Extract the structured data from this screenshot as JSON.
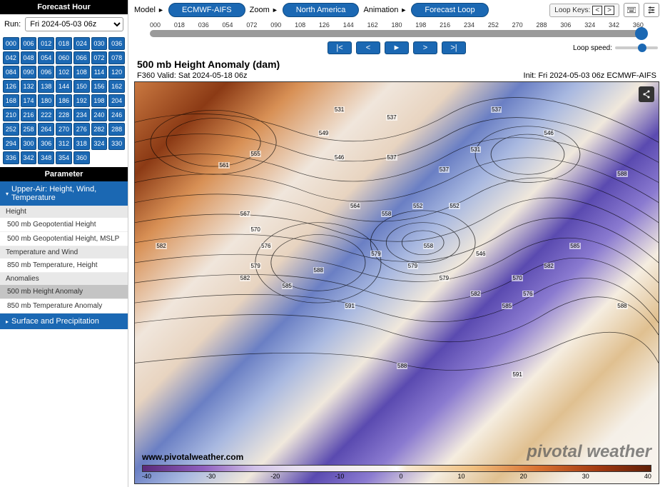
{
  "sidebar": {
    "forecast_hour_header": "Forecast Hour",
    "run_label": "Run:",
    "run_value": "Fri 2024-05-03 06z",
    "hours": [
      "000",
      "006",
      "012",
      "018",
      "024",
      "030",
      "036",
      "042",
      "048",
      "054",
      "060",
      "066",
      "072",
      "078",
      "084",
      "090",
      "096",
      "102",
      "108",
      "114",
      "120",
      "126",
      "132",
      "138",
      "144",
      "150",
      "156",
      "162",
      "168",
      "174",
      "180",
      "186",
      "192",
      "198",
      "204",
      "210",
      "216",
      "222",
      "228",
      "234",
      "240",
      "246",
      "252",
      "258",
      "264",
      "270",
      "276",
      "282",
      "288",
      "294",
      "300",
      "306",
      "312",
      "318",
      "324",
      "330",
      "336",
      "342",
      "348",
      "354",
      "360"
    ],
    "parameter_header": "Parameter",
    "accordion1": "Upper-Air: Height, Wind, Temperature",
    "group_height": "Height",
    "item_500gh": "500 mb Geopotential Height",
    "item_500gh_mslp": "500 mb Geopotential Height, MSLP",
    "group_temp": "Temperature and Wind",
    "item_850th": "850 mb Temperature, Height",
    "group_anom": "Anomalies",
    "item_500anom": "500 mb Height Anomaly",
    "item_850anom": "850 mb Temperature Anomaly",
    "accordion2": "Surface and Precipitation"
  },
  "top": {
    "model_label": "Model",
    "model_value": "ECMWF-AIFS",
    "zoom_label": "Zoom",
    "zoom_value": "North America",
    "anim_label": "Animation",
    "anim_value": "Forecast Loop",
    "loop_keys_label": "Loop Keys:",
    "loop_speed_label": "Loop speed:"
  },
  "ticks": [
    "000",
    "018",
    "036",
    "054",
    "072",
    "090",
    "108",
    "126",
    "144",
    "162",
    "180",
    "198",
    "216",
    "234",
    "252",
    "270",
    "288",
    "306",
    "324",
    "342",
    "360"
  ],
  "anim_buttons": {
    "first": "|<",
    "prev": "<",
    "play": "►",
    "next": ">",
    "last": ">|"
  },
  "map": {
    "title": "500 mb Height Anomaly (dam)",
    "subtitle_left": "F360 Valid: Sat 2024-05-18 06z",
    "subtitle_right": "Init: Fri 2024-05-03 06z ECMWF-AIFS",
    "watermark": "pivotal weather",
    "watermark_www": "www.pivotalweather.com",
    "colorbar_ticks": [
      "-40",
      "-30",
      "-20",
      "-10",
      "0",
      "10",
      "20",
      "30",
      "40"
    ],
    "contour_samples": [
      {
        "x": 38,
        "y": 6,
        "v": "531"
      },
      {
        "x": 48,
        "y": 8,
        "v": "537"
      },
      {
        "x": 68,
        "y": 6,
        "v": "537"
      },
      {
        "x": 35,
        "y": 12,
        "v": "549"
      },
      {
        "x": 22,
        "y": 17,
        "v": "555"
      },
      {
        "x": 16,
        "y": 20,
        "v": "561"
      },
      {
        "x": 38,
        "y": 18,
        "v": "546"
      },
      {
        "x": 48,
        "y": 18,
        "v": "537"
      },
      {
        "x": 58,
        "y": 21,
        "v": "537"
      },
      {
        "x": 64,
        "y": 16,
        "v": "531"
      },
      {
        "x": 78,
        "y": 12,
        "v": "546"
      },
      {
        "x": 20,
        "y": 32,
        "v": "567"
      },
      {
        "x": 22,
        "y": 36,
        "v": "570"
      },
      {
        "x": 24,
        "y": 40,
        "v": "576"
      },
      {
        "x": 22,
        "y": 45,
        "v": "579"
      },
      {
        "x": 20,
        "y": 48,
        "v": "582"
      },
      {
        "x": 28,
        "y": 50,
        "v": "585"
      },
      {
        "x": 34,
        "y": 46,
        "v": "588"
      },
      {
        "x": 40,
        "y": 55,
        "v": "591"
      },
      {
        "x": 92,
        "y": 22,
        "v": "588"
      },
      {
        "x": 92,
        "y": 55,
        "v": "588"
      },
      {
        "x": 4,
        "y": 40,
        "v": "582"
      },
      {
        "x": 41,
        "y": 30,
        "v": "564"
      },
      {
        "x": 45,
        "y": 42,
        "v": "579"
      },
      {
        "x": 52,
        "y": 45,
        "v": "579"
      },
      {
        "x": 58,
        "y": 48,
        "v": "579"
      },
      {
        "x": 64,
        "y": 52,
        "v": "582"
      },
      {
        "x": 70,
        "y": 55,
        "v": "585"
      },
      {
        "x": 50,
        "y": 70,
        "v": "588"
      },
      {
        "x": 72,
        "y": 72,
        "v": "591"
      },
      {
        "x": 53,
        "y": 30,
        "v": "552"
      },
      {
        "x": 60,
        "y": 30,
        "v": "552"
      },
      {
        "x": 55,
        "y": 40,
        "v": "558"
      },
      {
        "x": 47,
        "y": 32,
        "v": "558"
      },
      {
        "x": 65,
        "y": 42,
        "v": "546"
      },
      {
        "x": 72,
        "y": 48,
        "v": "570"
      },
      {
        "x": 74,
        "y": 52,
        "v": "576"
      },
      {
        "x": 78,
        "y": 45,
        "v": "582"
      },
      {
        "x": 83,
        "y": 40,
        "v": "585"
      }
    ]
  }
}
